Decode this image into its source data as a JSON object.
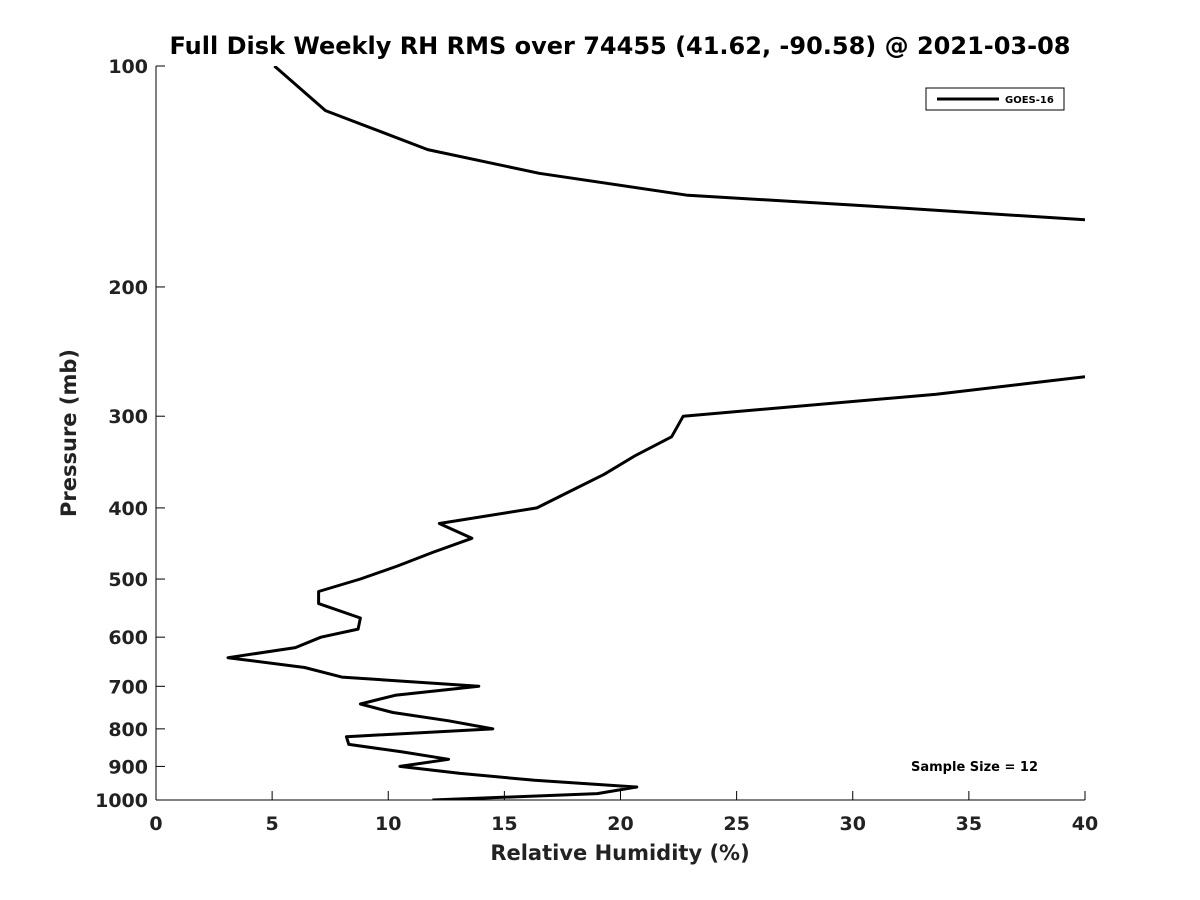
{
  "chart_data": {
    "type": "line",
    "title": "Full Disk Weekly RH RMS over 74455 (41.62, -90.58) @ 2021-03-08",
    "xlabel": "Relative Humidity (%)",
    "ylabel": "Pressure (mb)",
    "xlim": [
      0,
      40
    ],
    "ylim": [
      100,
      1000
    ],
    "yscale": "log",
    "y_reversed": true,
    "grid": false,
    "legend_position": "top-right",
    "x_ticks": [
      0,
      5,
      10,
      15,
      20,
      25,
      30,
      35,
      40
    ],
    "y_ticks": [
      100,
      200,
      300,
      400,
      500,
      600,
      700,
      800,
      900,
      1000
    ],
    "annotation": "Sample Size = 12",
    "series": [
      {
        "name": "GOES-16",
        "color": "#000000",
        "segments": [
          [
            [
              5.1,
              100
            ],
            [
              7.3,
              115
            ],
            [
              11.7,
              130
            ],
            [
              16.5,
              140
            ],
            [
              22.9,
              150
            ],
            [
              30.5,
              155
            ],
            [
              40.0,
              162
            ]
          ],
          [
            [
              40.0,
              265
            ],
            [
              33.6,
              280
            ],
            [
              22.7,
              300
            ],
            [
              22.2,
              320
            ],
            [
              20.6,
              340
            ],
            [
              19.3,
              360
            ],
            [
              17.8,
              380
            ],
            [
              16.4,
              400
            ],
            [
              12.2,
              420
            ],
            [
              13.6,
              440
            ],
            [
              11.9,
              460
            ],
            [
              10.4,
              480
            ],
            [
              8.8,
              500
            ],
            [
              7.0,
              520
            ],
            [
              7.0,
              540
            ],
            [
              8.8,
              565
            ],
            [
              8.7,
              585
            ],
            [
              7.1,
              600
            ],
            [
              6.0,
              620
            ],
            [
              3.1,
              640
            ],
            [
              6.4,
              660
            ],
            [
              8.0,
              680
            ],
            [
              13.9,
              700
            ],
            [
              10.3,
              720
            ],
            [
              8.8,
              740
            ],
            [
              10.2,
              760
            ],
            [
              12.6,
              780
            ],
            [
              14.5,
              800
            ],
            [
              8.2,
              820
            ],
            [
              8.3,
              840
            ],
            [
              10.6,
              860
            ],
            [
              12.6,
              880
            ],
            [
              10.5,
              900
            ],
            [
              13.1,
              920
            ],
            [
              16.3,
              940
            ],
            [
              20.7,
              960
            ],
            [
              19.0,
              980
            ],
            [
              11.9,
              1000
            ]
          ]
        ]
      }
    ]
  }
}
